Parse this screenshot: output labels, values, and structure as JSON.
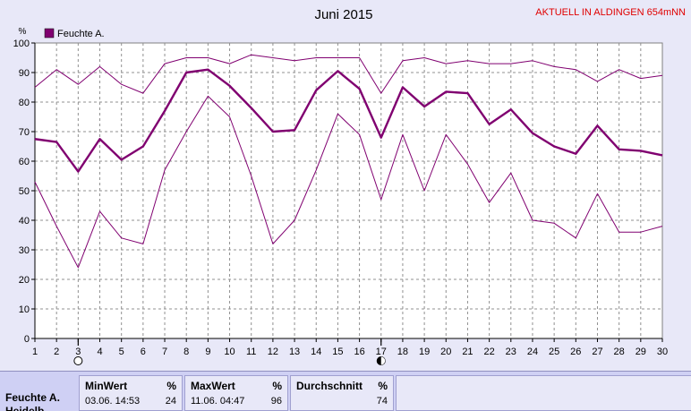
{
  "header": {
    "title": "Juni 2015",
    "aktuell": "AKTUELL IN ALDINGEN 654mNN"
  },
  "chart_data": {
    "type": "line",
    "ylabel": "%",
    "ylim": [
      0,
      100
    ],
    "xlim": [
      1,
      30
    ],
    "yticks": [
      0,
      10,
      20,
      30,
      40,
      50,
      60,
      70,
      80,
      90,
      100
    ],
    "x": [
      1,
      2,
      3,
      4,
      5,
      6,
      7,
      8,
      9,
      10,
      11,
      12,
      13,
      14,
      15,
      16,
      17,
      18,
      19,
      20,
      21,
      22,
      23,
      24,
      25,
      26,
      27,
      28,
      29,
      30
    ],
    "legend": {
      "label": "Feuchte A.",
      "color": "#800070",
      "placement": "top-left"
    },
    "grid": true,
    "series": [
      {
        "role": "max",
        "values": [
          85,
          91,
          86,
          92,
          86,
          83,
          93,
          95,
          95,
          93,
          96,
          95,
          94,
          95,
          95,
          95,
          83,
          94,
          95,
          93,
          94,
          93,
          93,
          94,
          92,
          91,
          87,
          91,
          88,
          89
        ]
      },
      {
        "role": "mean",
        "values": [
          67.5,
          66.5,
          56.5,
          67.5,
          60.5,
          65,
          77,
          90,
          91,
          85.5,
          78,
          70,
          70.5,
          84,
          90.5,
          84.5,
          68,
          85,
          78.5,
          83.5,
          83,
          72.5,
          77.5,
          69.5,
          65,
          62.5,
          72,
          64,
          63.5,
          62
        ]
      },
      {
        "role": "min",
        "values": [
          53,
          38,
          24,
          43,
          34,
          32,
          57,
          70,
          82,
          75,
          55,
          32,
          40,
          57,
          76,
          69,
          47,
          69,
          50,
          69,
          59,
          46,
          56,
          40,
          39,
          34,
          49,
          36,
          36,
          38
        ]
      }
    ],
    "markers": [
      {
        "x": 3,
        "symbol": "open-circle"
      },
      {
        "x": 17,
        "symbol": "half-circle"
      }
    ]
  },
  "stats": {
    "row_label": "Feuchte A.",
    "row_label_next": "Heidelb...",
    "min": {
      "head": "MinWert",
      "unit": "%",
      "timestamp": "03.06.  14:53",
      "value": "24"
    },
    "max": {
      "head": "MaxWert",
      "unit": "%",
      "timestamp": "11.06.  04:47",
      "value": "96"
    },
    "avg": {
      "head": "Durchschnitt",
      "unit": "%",
      "value": "74"
    }
  },
  "colors": {
    "series": "#800070",
    "title_alert": "#e00000",
    "background": "#e8e8f8",
    "plot_background": "#ffffff",
    "stats_background": "#cfd0f4"
  }
}
